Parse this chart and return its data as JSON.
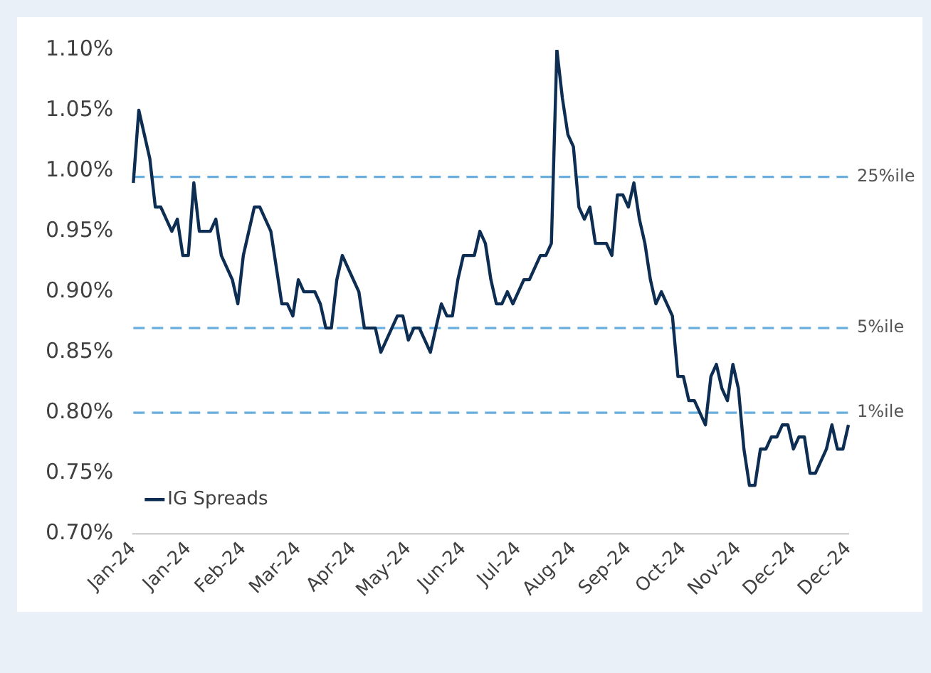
{
  "chart_data": {
    "type": "line",
    "categories": [
      "Jan-24",
      null,
      null,
      null,
      null,
      null,
      null,
      null,
      null,
      null,
      "Jan-24",
      null,
      null,
      null,
      null,
      null,
      null,
      null,
      null,
      null,
      "Feb-24",
      null,
      null,
      null,
      null,
      null,
      null,
      null,
      null,
      null,
      "Mar-24",
      null,
      null,
      null,
      null,
      null,
      null,
      null,
      null,
      null,
      "Apr-24",
      null,
      null,
      null,
      null,
      null,
      null,
      null,
      null,
      null,
      "May-24",
      null,
      null,
      null,
      null,
      null,
      null,
      null,
      null,
      null,
      "Jun-24",
      null,
      null,
      null,
      null,
      null,
      null,
      null,
      null,
      null,
      "Jul-24",
      null,
      null,
      null,
      null,
      null,
      null,
      null,
      null,
      null,
      "Aug-24",
      null,
      null,
      null,
      null,
      null,
      null,
      null,
      null,
      null,
      "Sep-24",
      null,
      null,
      null,
      null,
      null,
      null,
      null,
      null,
      null,
      "Oct-24",
      null,
      null,
      null,
      null,
      null,
      null,
      null,
      null,
      null,
      "Nov-24",
      null,
      null,
      null,
      null,
      null,
      null,
      null,
      null,
      null,
      "Dec-24",
      null,
      null,
      null,
      null,
      null,
      null,
      null,
      null,
      null,
      "Dec-24"
    ],
    "series": [
      {
        "name": "IG Spreads",
        "color": "#0d2d52",
        "values": [
          0.99,
          1.05,
          1.03,
          1.01,
          0.97,
          0.97,
          0.96,
          0.95,
          0.96,
          0.93,
          0.93,
          0.99,
          0.95,
          0.95,
          0.95,
          0.96,
          0.93,
          0.92,
          0.91,
          0.89,
          0.93,
          0.95,
          0.97,
          0.97,
          0.96,
          0.95,
          0.92,
          0.89,
          0.89,
          0.88,
          0.91,
          0.9,
          0.9,
          0.9,
          0.89,
          0.87,
          0.87,
          0.91,
          0.93,
          0.92,
          0.91,
          0.9,
          0.87,
          0.87,
          0.87,
          0.85,
          0.86,
          0.87,
          0.88,
          0.88,
          0.86,
          0.87,
          0.87,
          0.86,
          0.85,
          0.87,
          0.89,
          0.88,
          0.88,
          0.91,
          0.93,
          0.93,
          0.93,
          0.95,
          0.94,
          0.91,
          0.89,
          0.89,
          0.9,
          0.89,
          0.9,
          0.91,
          0.91,
          0.92,
          0.93,
          0.93,
          0.94,
          1.1,
          1.06,
          1.03,
          1.02,
          0.97,
          0.96,
          0.97,
          0.94,
          0.94,
          0.94,
          0.93,
          0.98,
          0.98,
          0.97,
          0.99,
          0.96,
          0.94,
          0.91,
          0.89,
          0.9,
          0.89,
          0.88,
          0.83,
          0.83,
          0.81,
          0.81,
          0.8,
          0.79,
          0.83,
          0.84,
          0.82,
          0.81,
          0.84,
          0.82,
          0.77,
          0.74,
          0.74,
          0.77,
          0.77,
          0.78,
          0.78,
          0.79,
          0.79,
          0.77,
          0.78,
          0.78,
          0.75,
          0.75,
          0.76,
          0.77,
          0.79,
          0.77,
          0.77,
          0.79
        ]
      }
    ],
    "ylim": [
      0.7,
      1.1
    ],
    "yticks": [
      {
        "value": 0.7,
        "label": "0.70%"
      },
      {
        "value": 0.75,
        "label": "0.75%"
      },
      {
        "value": 0.8,
        "label": "0.80%"
      },
      {
        "value": 0.85,
        "label": "0.85%"
      },
      {
        "value": 0.9,
        "label": "0.90%"
      },
      {
        "value": 0.95,
        "label": "0.95%"
      },
      {
        "value": 1.0,
        "label": "1.00%"
      },
      {
        "value": 1.05,
        "label": "1.05%"
      },
      {
        "value": 1.1,
        "label": "1.10%"
      }
    ],
    "ref_lines": [
      {
        "axis": "y",
        "value": 0.995,
        "label": "25%ile",
        "color": "#6aaee0",
        "line_style": "dashed"
      },
      {
        "axis": "y",
        "value": 0.87,
        "label": "5%ile",
        "color": "#6aaee0",
        "line_style": "dashed"
      },
      {
        "axis": "y",
        "value": 0.8,
        "label": "1%ile",
        "color": "#6aaee0",
        "line_style": "dashed"
      }
    ],
    "grid": false,
    "legend": "bottom left",
    "marker": "none",
    "line_style": "solid"
  }
}
